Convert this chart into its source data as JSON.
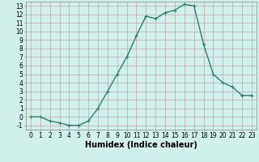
{
  "x": [
    0,
    1,
    2,
    3,
    4,
    5,
    6,
    7,
    8,
    9,
    10,
    11,
    12,
    13,
    14,
    15,
    16,
    17,
    18,
    19,
    20,
    21,
    22,
    23
  ],
  "y": [
    0,
    0,
    -0.5,
    -0.7,
    -1,
    -1,
    -0.5,
    1,
    3,
    5,
    7,
    9.5,
    11.8,
    11.5,
    12.2,
    12.5,
    13.2,
    13.0,
    8.5,
    5,
    4,
    3.5,
    2.5,
    2.5
  ],
  "line_color": "#2e7d6e",
  "marker": "+",
  "marker_size": 3,
  "bg_color": "#cff0eb",
  "grid_color": "#c0a8a8",
  "xlabel": "Humidex (Indice chaleur)",
  "xlim": [
    -0.5,
    23.5
  ],
  "ylim": [
    -1.5,
    13.5
  ],
  "yticks": [
    -1,
    0,
    1,
    2,
    3,
    4,
    5,
    6,
    7,
    8,
    9,
    10,
    11,
    12,
    13
  ],
  "xticks": [
    0,
    1,
    2,
    3,
    4,
    5,
    6,
    7,
    8,
    9,
    10,
    11,
    12,
    13,
    14,
    15,
    16,
    17,
    18,
    19,
    20,
    21,
    22,
    23
  ],
  "tick_label_fontsize": 5.5,
  "xlabel_fontsize": 7,
  "line_width": 1.0
}
